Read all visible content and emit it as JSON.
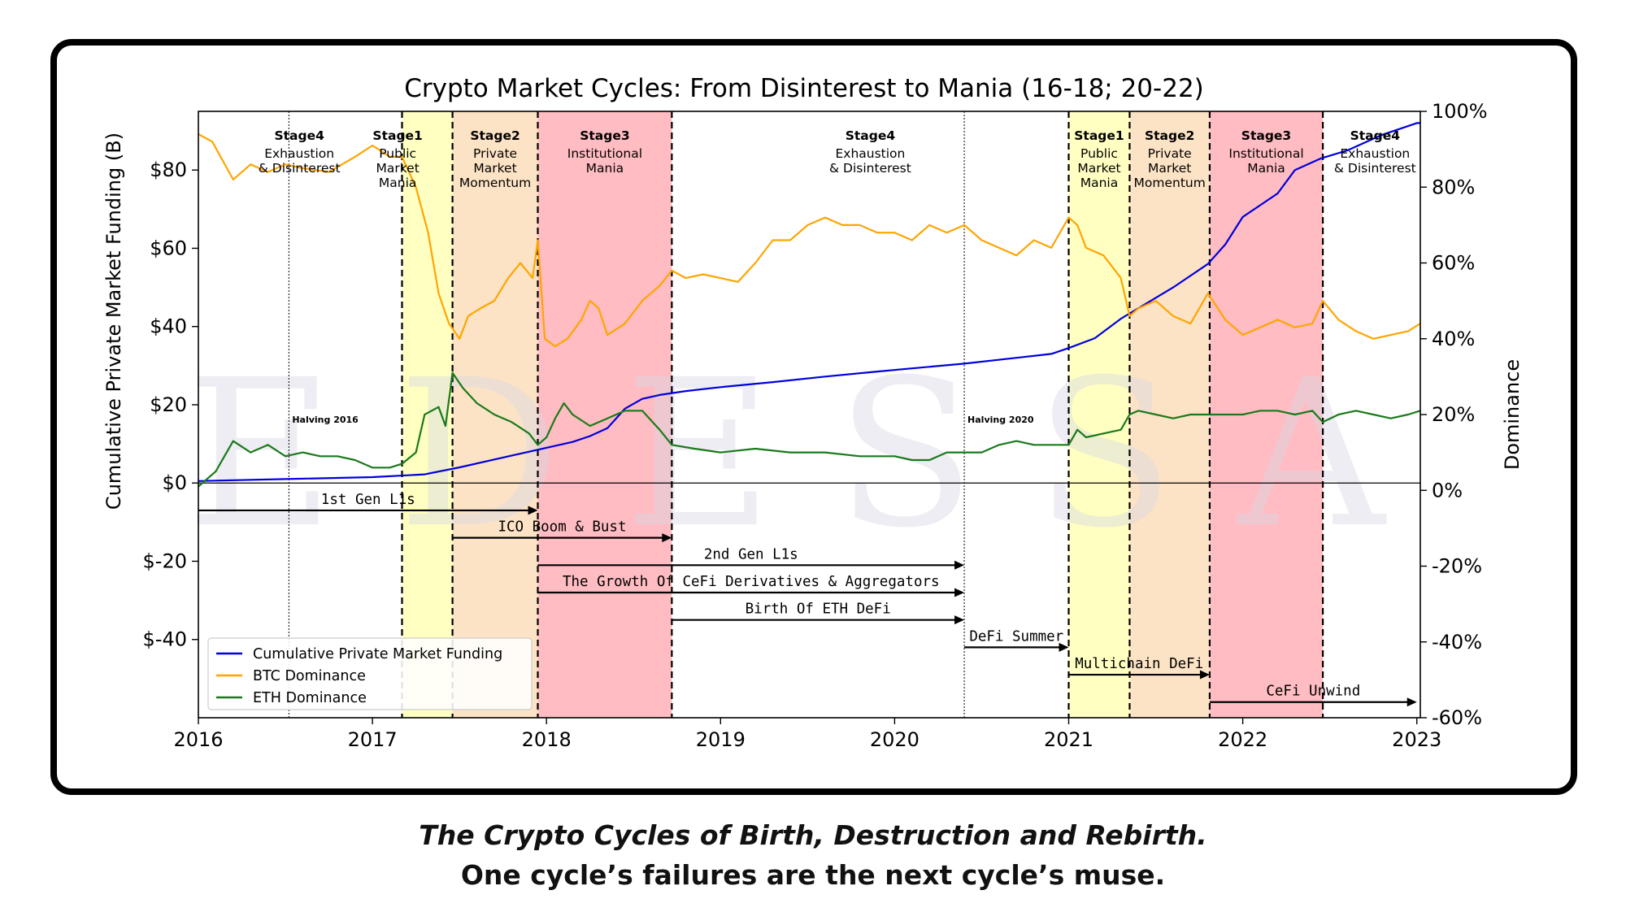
{
  "caption": {
    "line1": "The Crypto Cycles of Birth, Destruction and Rebirth.",
    "line2": "One cycle’s failures are the next cycle’s muse."
  },
  "watermark": "EDESSA",
  "chart_data": {
    "type": "line",
    "title": "Crypto Market Cycles: From Disinterest to Mania (16-18; 20-22)",
    "xlabel": "",
    "ylabel_left": "Cumulative Private Market Funding (B)",
    "ylabel_right": "Dominance",
    "xlim": [
      2016,
      2023.02
    ],
    "ylim_left": [
      -60,
      95
    ],
    "ylim_right": [
      -60,
      100
    ],
    "x_ticks": [
      {
        "v": 2016,
        "label": "2016"
      },
      {
        "v": 2017,
        "label": "2017"
      },
      {
        "v": 2018,
        "label": "2018"
      },
      {
        "v": 2019,
        "label": "2019"
      },
      {
        "v": 2020,
        "label": "2020"
      },
      {
        "v": 2021,
        "label": "2021"
      },
      {
        "v": 2022,
        "label": "2022"
      },
      {
        "v": 2023,
        "label": "2023"
      }
    ],
    "y_left_ticks": [
      {
        "v": 80,
        "label": "$80"
      },
      {
        "v": 60,
        "label": "$60"
      },
      {
        "v": 40,
        "label": "$40"
      },
      {
        "v": 20,
        "label": "$20"
      },
      {
        "v": 0,
        "label": "$0"
      },
      {
        "v": -20,
        "label": "$-20"
      },
      {
        "v": -40,
        "label": "$-40"
      }
    ],
    "y_right_ticks": [
      {
        "v": 100,
        "label": "100%"
      },
      {
        "v": 80,
        "label": "80%"
      },
      {
        "v": 60,
        "label": "60%"
      },
      {
        "v": 40,
        "label": "40%"
      },
      {
        "v": 20,
        "label": "20%"
      },
      {
        "v": 0,
        "label": "0%"
      },
      {
        "v": -20,
        "label": "-20%"
      },
      {
        "v": -40,
        "label": "-40%"
      },
      {
        "v": -60,
        "label": "-60%"
      }
    ],
    "stages": [
      {
        "x0": 2016.0,
        "x1": 2017.17,
        "color": "none",
        "title": "Stage4",
        "subtitle": [
          "Exhaustion",
          "& Disinterest"
        ],
        "label_x": 2016.58
      },
      {
        "x0": 2017.17,
        "x1": 2017.46,
        "color": "#ffffc2",
        "title": "Stage1",
        "subtitle": [
          "Public",
          "Market",
          "Mania"
        ],
        "label_x": 2017.145
      },
      {
        "x0": 2017.46,
        "x1": 2017.95,
        "color": "#fde3c5",
        "title": "Stage2",
        "subtitle": [
          "Private",
          "Market",
          "Momentum"
        ],
        "label_x": 2017.705
      },
      {
        "x0": 2017.95,
        "x1": 2018.72,
        "color": "#ffbcc2",
        "title": "Stage3",
        "subtitle": [
          "Institutional",
          "Mania"
        ],
        "label_x": 2018.335
      },
      {
        "x0": 2018.72,
        "x1": 2021.0,
        "color": "none",
        "title": "Stage4",
        "subtitle": [
          "Exhaustion",
          "& Disinterest"
        ],
        "label_x": 2019.86
      },
      {
        "x0": 2021.0,
        "x1": 2021.35,
        "color": "#ffffc2",
        "title": "Stage1",
        "subtitle": [
          "Public",
          "Market",
          "Mania"
        ],
        "label_x": 2021.175
      },
      {
        "x0": 2021.35,
        "x1": 2021.81,
        "color": "#fde3c5",
        "title": "Stage2",
        "subtitle": [
          "Private",
          "Market",
          "Momentum"
        ],
        "label_x": 2021.58
      },
      {
        "x0": 2021.81,
        "x1": 2022.46,
        "color": "#ffbcc2",
        "title": "Stage3",
        "subtitle": [
          "Institutional",
          "Mania"
        ],
        "label_x": 2022.135
      },
      {
        "x0": 2022.46,
        "x1": 2023.02,
        "color": "none",
        "title": "Stage4",
        "subtitle": [
          "Exhaustion",
          "& Disinterest"
        ],
        "label_x": 2022.76
      }
    ],
    "stage_boundaries": [
      2017.17,
      2017.46,
      2017.95,
      2018.72,
      2021.0,
      2021.35,
      2021.81,
      2022.46
    ],
    "halvings": [
      {
        "x": 2016.52,
        "label": "Halving 2016"
      },
      {
        "x": 2020.4,
        "label": "Halving 2020"
      }
    ],
    "eras": [
      {
        "label": "1st Gen L1s",
        "x0": 2016.0,
        "x1": 2017.95,
        "y": -7
      },
      {
        "label": "ICO Boom & Bust",
        "x0": 2017.46,
        "x1": 2018.72,
        "y": -14
      },
      {
        "label": "2nd Gen L1s",
        "x0": 2017.95,
        "x1": 2020.4,
        "y": -21
      },
      {
        "label": "The Growth Of CeFi Derivatives & Aggregators",
        "x0": 2017.95,
        "x1": 2020.4,
        "y": -28
      },
      {
        "label": "Birth Of ETH DeFi",
        "x0": 2018.72,
        "x1": 2020.4,
        "y": -35
      },
      {
        "label": "DeFi Summer",
        "x0": 2020.4,
        "x1": 2021.0,
        "y": -42
      },
      {
        "label": "Multichain DeFi",
        "x0": 2021.0,
        "x1": 2021.81,
        "y": -49
      },
      {
        "label": "CeFi Unwind",
        "x0": 2021.81,
        "x1": 2023.0,
        "y": -56
      }
    ],
    "legend_position": "lower-left",
    "series": [
      {
        "name": "Cumulative Private Market Funding",
        "axis": "left",
        "color": "#0000dd",
        "x": [
          2016.0,
          2016.5,
          2017.0,
          2017.3,
          2017.5,
          2017.7,
          2017.95,
          2018.15,
          2018.25,
          2018.35,
          2018.45,
          2018.55,
          2018.65,
          2018.8,
          2019.0,
          2019.3,
          2019.6,
          2019.9,
          2020.1,
          2020.4,
          2020.7,
          2020.9,
          2021.0,
          2021.15,
          2021.3,
          2021.45,
          2021.6,
          2021.8,
          2021.9,
          2022.0,
          2022.1,
          2022.2,
          2022.3,
          2022.45,
          2022.6,
          2022.8,
          2023.0,
          2023.02
        ],
        "values": [
          0.5,
          1.0,
          1.5,
          2.2,
          4.0,
          6.0,
          8.5,
          10.5,
          12.0,
          14.0,
          19.0,
          21.5,
          22.5,
          23.5,
          24.5,
          25.8,
          27.2,
          28.5,
          29.3,
          30.5,
          32.0,
          33.0,
          34.5,
          37.0,
          42.0,
          46.0,
          50.0,
          56.0,
          61.0,
          68.0,
          71.0,
          74.0,
          80.0,
          83.0,
          85.0,
          89.0,
          92.0,
          92.0
        ]
      },
      {
        "name": "BTC Dominance",
        "axis": "right",
        "color": "#ffa500",
        "x": [
          2016.0,
          2016.08,
          2016.2,
          2016.3,
          2016.4,
          2016.5,
          2016.6,
          2016.75,
          2016.9,
          2017.0,
          2017.1,
          2017.17,
          2017.25,
          2017.32,
          2017.38,
          2017.44,
          2017.5,
          2017.55,
          2017.62,
          2017.7,
          2017.78,
          2017.85,
          2017.92,
          2017.95,
          2017.99,
          2018.05,
          2018.12,
          2018.2,
          2018.25,
          2018.3,
          2018.35,
          2018.45,
          2018.55,
          2018.65,
          2018.72,
          2018.8,
          2018.9,
          2019.0,
          2019.1,
          2019.2,
          2019.3,
          2019.4,
          2019.5,
          2019.6,
          2019.7,
          2019.8,
          2019.9,
          2020.0,
          2020.1,
          2020.2,
          2020.3,
          2020.4,
          2020.5,
          2020.6,
          2020.7,
          2020.8,
          2020.9,
          2021.0,
          2021.05,
          2021.1,
          2021.2,
          2021.3,
          2021.35,
          2021.4,
          2021.5,
          2021.6,
          2021.7,
          2021.8,
          2021.9,
          2022.0,
          2022.1,
          2022.2,
          2022.3,
          2022.4,
          2022.46,
          2022.55,
          2022.65,
          2022.75,
          2022.85,
          2022.95,
          2023.02
        ],
        "values": [
          94,
          92,
          82,
          86,
          84,
          86,
          85,
          84,
          88,
          91,
          88,
          88,
          80,
          68,
          52,
          44,
          40,
          46,
          48,
          50,
          56,
          60,
          56,
          66,
          40,
          38,
          40,
          45,
          50,
          48,
          41,
          44,
          50,
          54,
          58,
          56,
          57,
          56,
          55,
          60,
          66,
          66,
          70,
          72,
          70,
          70,
          68,
          68,
          66,
          70,
          68,
          70,
          66,
          64,
          62,
          66,
          64,
          72,
          70,
          64,
          62,
          56,
          46,
          48,
          50,
          46,
          44,
          52,
          45,
          41,
          43,
          45,
          43,
          44,
          50,
          45,
          42,
          40,
          41,
          42,
          44
        ]
      },
      {
        "name": "ETH Dominance",
        "axis": "right",
        "color": "#1a7a1a",
        "x": [
          2016.0,
          2016.1,
          2016.2,
          2016.3,
          2016.4,
          2016.5,
          2016.6,
          2016.7,
          2016.8,
          2016.9,
          2017.0,
          2017.1,
          2017.17,
          2017.25,
          2017.3,
          2017.38,
          2017.42,
          2017.46,
          2017.52,
          2017.6,
          2017.7,
          2017.8,
          2017.9,
          2017.95,
          2018.0,
          2018.05,
          2018.1,
          2018.15,
          2018.25,
          2018.35,
          2018.45,
          2018.55,
          2018.65,
          2018.72,
          2018.85,
          2019.0,
          2019.2,
          2019.4,
          2019.6,
          2019.8,
          2020.0,
          2020.1,
          2020.2,
          2020.3,
          2020.4,
          2020.5,
          2020.6,
          2020.7,
          2020.8,
          2020.9,
          2021.0,
          2021.05,
          2021.1,
          2021.2,
          2021.3,
          2021.35,
          2021.4,
          2021.5,
          2021.6,
          2021.7,
          2021.8,
          2021.9,
          2022.0,
          2022.1,
          2022.2,
          2022.3,
          2022.4,
          2022.46,
          2022.55,
          2022.65,
          2022.75,
          2022.85,
          2022.95,
          2023.02
        ],
        "values": [
          1,
          5,
          13,
          10,
          12,
          9,
          10,
          9,
          9,
          8,
          6,
          6,
          7,
          10,
          20,
          22,
          17,
          31,
          27,
          23,
          20,
          18,
          15,
          12,
          14,
          19,
          23,
          20,
          17,
          19,
          21,
          21,
          16,
          12,
          11,
          10,
          11,
          10,
          10,
          9,
          9,
          8,
          8,
          10,
          10,
          10,
          12,
          13,
          12,
          12,
          12,
          16,
          14,
          15,
          16,
          20,
          21,
          20,
          19,
          20,
          20,
          20,
          20,
          21,
          21,
          20,
          21,
          18,
          20,
          21,
          20,
          19,
          20,
          21
        ]
      }
    ]
  }
}
